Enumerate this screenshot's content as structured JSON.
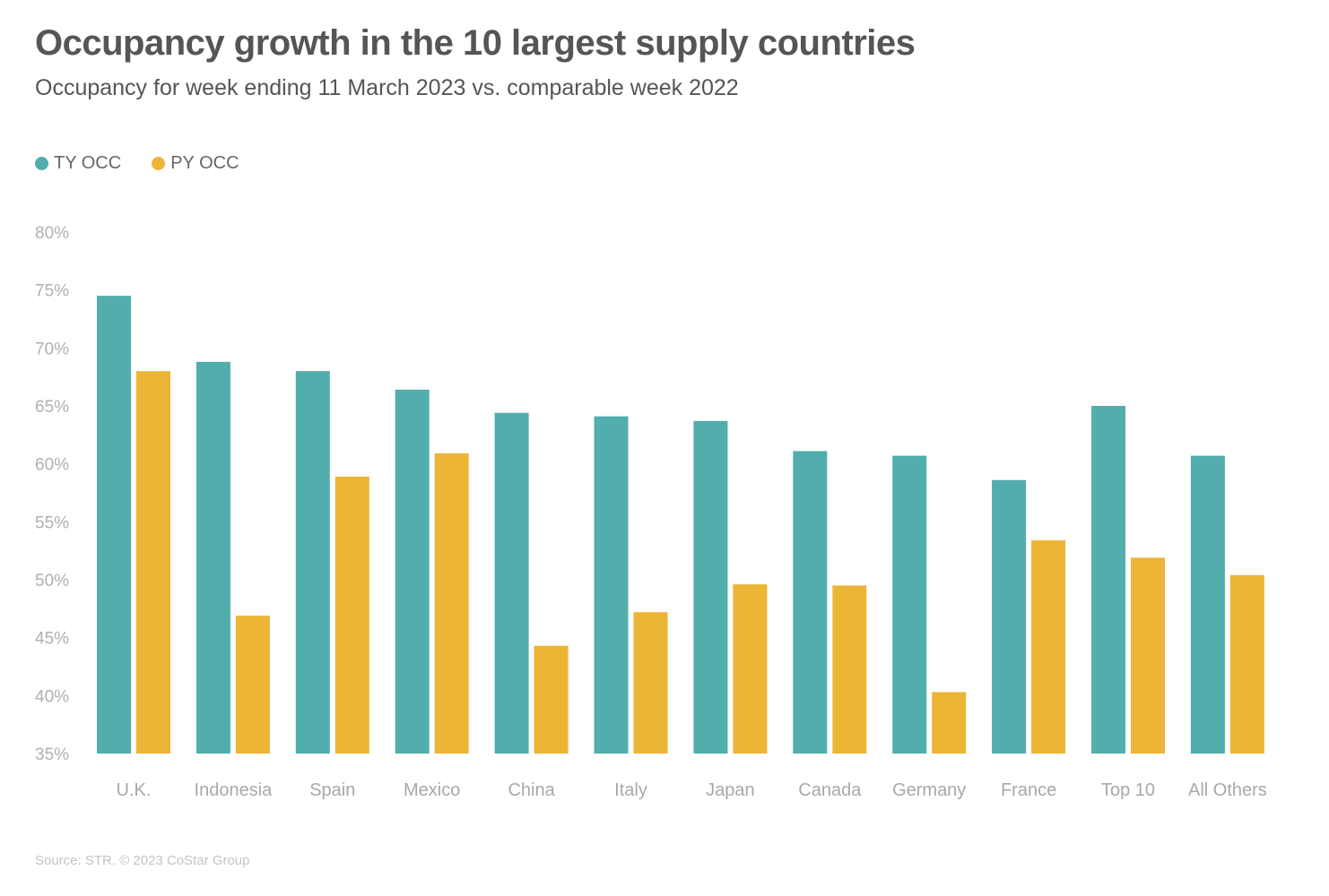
{
  "title": "Occupancy growth in the 10 largest supply countries",
  "subtitle": "Occupancy for week ending 11 March 2023 vs. comparable week 2022",
  "source": "Source: STR. © 2023 CoStar Group",
  "colors": {
    "ty": "#52adad",
    "py": "#edb535"
  },
  "chart_data": {
    "type": "bar",
    "title": "Occupancy growth in the 10 largest supply countries",
    "xlabel": "",
    "ylabel": "",
    "ylim": [
      35,
      80
    ],
    "yticks": [
      80,
      75,
      70,
      65,
      60,
      55,
      50,
      45,
      40,
      35
    ],
    "ytick_labels": [
      "80%",
      "75%",
      "70%",
      "65%",
      "60%",
      "55%",
      "50%",
      "45%",
      "40%",
      "35%"
    ],
    "grid": false,
    "legend_position": "top-left",
    "categories": [
      "U.K.",
      "Indonesia",
      "Spain",
      "Mexico",
      "China",
      "Italy",
      "Japan",
      "Canada",
      "Germany",
      "France",
      "Top 10",
      "All Others"
    ],
    "series": [
      {
        "name": "TY OCC",
        "values": [
          74.5,
          68.8,
          68.0,
          66.4,
          64.4,
          64.1,
          63.7,
          61.1,
          60.7,
          58.6,
          65.0,
          60.7
        ]
      },
      {
        "name": "PY OCC",
        "values": [
          68.0,
          46.9,
          58.9,
          60.9,
          44.3,
          47.2,
          49.6,
          49.5,
          40.3,
          53.4,
          51.9,
          50.4
        ]
      }
    ]
  }
}
